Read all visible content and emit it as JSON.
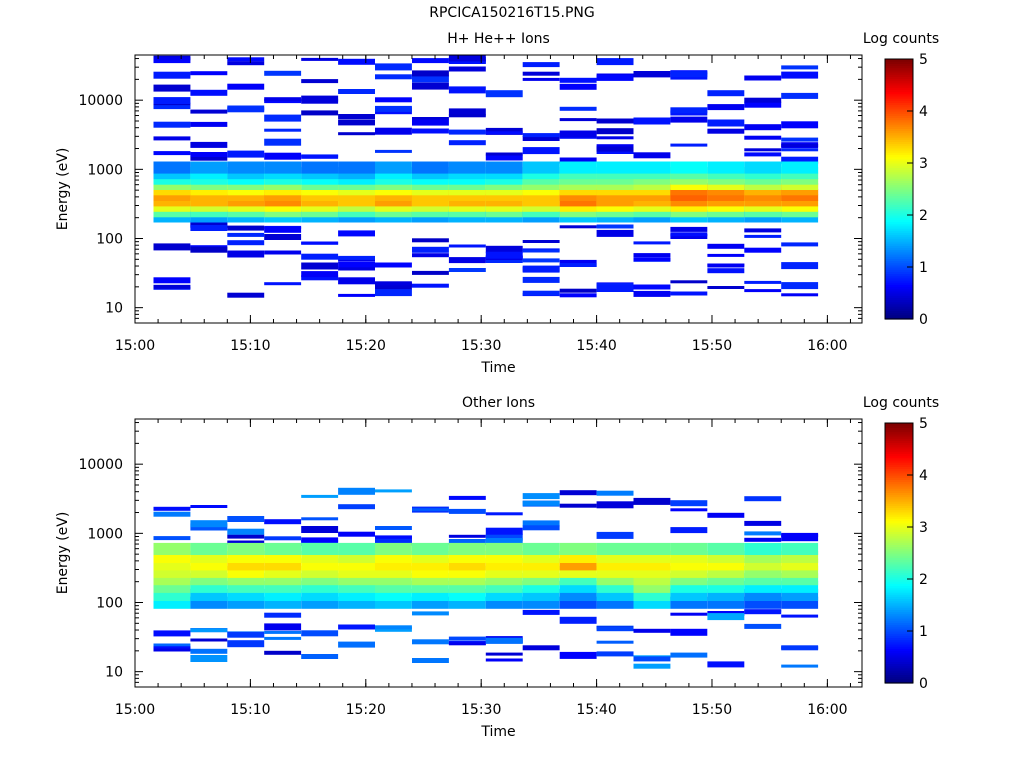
{
  "figure_title": "RPCICA150216T15.PNG",
  "chart_data": [
    {
      "type": "heatmap",
      "title": "H+ He++ Ions",
      "xlabel": "Time",
      "ylabel": "Energy (eV)",
      "colorbar_label": "Log counts",
      "yscale": "log",
      "ylim": [
        6,
        45000
      ],
      "xlim": [
        "15:00",
        "16:03"
      ],
      "xticks": [
        "15:00",
        "15:10",
        "15:20",
        "15:30",
        "15:40",
        "15:50",
        "16:00"
      ],
      "yticks": [
        10,
        100,
        1000,
        10000
      ],
      "ytick_labels": [
        "10",
        "100",
        "1000",
        "10000"
      ],
      "color_range": [
        0,
        5
      ],
      "colorbar_ticks": [
        "0",
        "1",
        "2",
        "3",
        "4",
        "5"
      ],
      "time_columns": [
        "15:03:12",
        "15:06:24",
        "15:09:36",
        "15:12:48",
        "15:16:00",
        "15:19:12",
        "15:22:24",
        "15:25:36",
        "15:28:48",
        "15:32:00",
        "15:35:12",
        "15:38:24",
        "15:41:36",
        "15:44:48",
        "15:48:00",
        "15:51:12",
        "15:54:24",
        "15:57:36"
      ],
      "energy_bins_eV": [
        210,
        250,
        300,
        360,
        430,
        520,
        620,
        740,
        890,
        1070
      ],
      "log_counts_core": [
        [
          1.5,
          2.3,
          3.0,
          3.5,
          3.6,
          3.3,
          2.6,
          2.0,
          1.6,
          1.2
        ],
        [
          1.4,
          2.2,
          2.9,
          3.5,
          3.5,
          3.2,
          2.5,
          2.0,
          1.8,
          1.4
        ],
        [
          1.5,
          2.3,
          3.0,
          3.6,
          3.5,
          3.1,
          2.5,
          1.9,
          1.6,
          1.3
        ],
        [
          1.6,
          2.5,
          3.1,
          3.7,
          3.6,
          3.2,
          2.6,
          2.0,
          1.7,
          1.3
        ],
        [
          1.5,
          2.4,
          3.0,
          3.5,
          3.4,
          3.1,
          2.4,
          1.9,
          1.6,
          1.2
        ],
        [
          1.4,
          2.2,
          2.8,
          3.4,
          3.4,
          3.0,
          2.4,
          1.8,
          1.5,
          1.2
        ],
        [
          1.5,
          2.4,
          3.0,
          3.6,
          3.5,
          3.1,
          2.5,
          2.0,
          1.8,
          1.4
        ],
        [
          1.4,
          2.3,
          2.9,
          3.4,
          3.4,
          3.0,
          2.4,
          1.9,
          1.6,
          1.2
        ],
        [
          1.5,
          2.3,
          3.0,
          3.5,
          3.4,
          3.0,
          2.4,
          1.9,
          1.7,
          1.3
        ],
        [
          1.5,
          2.4,
          3.0,
          3.5,
          3.4,
          3.0,
          2.5,
          2.0,
          1.7,
          1.3
        ],
        [
          1.4,
          2.2,
          2.9,
          3.4,
          3.4,
          3.1,
          2.6,
          2.3,
          2.0,
          1.6
        ],
        [
          1.6,
          2.5,
          3.2,
          3.8,
          3.7,
          3.3,
          2.7,
          2.4,
          2.2,
          1.8
        ],
        [
          1.5,
          2.4,
          3.1,
          3.6,
          3.6,
          3.3,
          2.7,
          2.4,
          2.2,
          1.8
        ],
        [
          1.4,
          2.3,
          3.0,
          3.5,
          3.6,
          3.3,
          2.8,
          2.5,
          2.2,
          1.8
        ],
        [
          1.6,
          2.5,
          3.2,
          3.7,
          3.9,
          3.8,
          3.1,
          2.6,
          2.3,
          1.9
        ],
        [
          1.5,
          2.4,
          3.1,
          3.6,
          3.8,
          3.7,
          3.0,
          2.5,
          2.2,
          1.8
        ],
        [
          1.4,
          2.3,
          3.0,
          3.6,
          3.7,
          3.5,
          2.8,
          2.4,
          2.1,
          1.7
        ],
        [
          1.5,
          2.4,
          3.1,
          3.6,
          3.8,
          3.6,
          2.9,
          2.5,
          2.2,
          1.8
        ]
      ]
    },
    {
      "type": "heatmap",
      "title": "Other Ions",
      "xlabel": "Time",
      "ylabel": "Energy (eV)",
      "colorbar_label": "Log counts",
      "yscale": "log",
      "ylim": [
        6,
        45000
      ],
      "xlim": [
        "15:00",
        "16:03"
      ],
      "xticks": [
        "15:00",
        "15:10",
        "15:20",
        "15:30",
        "15:40",
        "15:50",
        "16:00"
      ],
      "yticks": [
        10,
        100,
        1000,
        10000
      ],
      "ytick_labels": [
        "10",
        "100",
        "1000",
        "10000"
      ],
      "color_range": [
        0,
        5
      ],
      "colorbar_ticks": [
        "0",
        "1",
        "2",
        "3",
        "4",
        "5"
      ],
      "time_columns": [
        "15:03:12",
        "15:06:24",
        "15:09:36",
        "15:12:48",
        "15:16:00",
        "15:19:12",
        "15:22:24",
        "15:25:36",
        "15:28:48",
        "15:32:00",
        "15:35:12",
        "15:38:24",
        "15:41:36",
        "15:44:48",
        "15:48:00",
        "15:51:12",
        "15:54:24",
        "15:57:36"
      ],
      "energy_bins_eV": [
        100,
        130,
        170,
        220,
        280,
        360,
        460,
        600
      ],
      "log_counts_core": [
        [
          1.8,
          2.1,
          2.4,
          2.7,
          2.9,
          3.0,
          3.1,
          2.6
        ],
        [
          1.3,
          1.6,
          2.1,
          2.5,
          2.9,
          3.1,
          3.0,
          2.4
        ],
        [
          1.4,
          1.7,
          2.2,
          2.6,
          3.1,
          3.3,
          3.1,
          2.5
        ],
        [
          1.5,
          1.8,
          2.2,
          2.6,
          3.0,
          3.3,
          3.1,
          2.4
        ],
        [
          1.4,
          1.7,
          2.1,
          2.5,
          2.9,
          3.1,
          3.0,
          2.3
        ],
        [
          1.5,
          1.8,
          2.2,
          2.6,
          3.0,
          3.1,
          2.9,
          2.3
        ],
        [
          1.6,
          1.9,
          2.3,
          2.6,
          3.0,
          3.2,
          3.1,
          2.5
        ],
        [
          1.4,
          1.8,
          2.3,
          2.7,
          3.1,
          3.2,
          3.0,
          2.4
        ],
        [
          1.5,
          1.9,
          2.3,
          2.7,
          3.1,
          3.3,
          3.1,
          2.5
        ],
        [
          1.3,
          1.7,
          2.2,
          2.6,
          3.0,
          3.2,
          3.1,
          2.5
        ],
        [
          1.3,
          1.6,
          2.0,
          2.5,
          3.0,
          3.2,
          3.0,
          2.4
        ],
        [
          1.0,
          1.3,
          1.7,
          2.2,
          3.0,
          3.6,
          3.2,
          2.5
        ],
        [
          1.2,
          1.6,
          2.1,
          2.6,
          3.0,
          3.2,
          3.0,
          2.4
        ],
        [
          1.7,
          2.1,
          2.6,
          2.8,
          3.0,
          3.2,
          3.0,
          2.4
        ],
        [
          1.2,
          1.6,
          2.0,
          2.5,
          2.9,
          3.1,
          3.0,
          2.4
        ],
        [
          1.2,
          1.5,
          2.0,
          2.4,
          2.8,
          3.1,
          2.9,
          2.3
        ],
        [
          1.0,
          1.3,
          1.8,
          2.3,
          2.6,
          2.9,
          2.7,
          2.1
        ],
        [
          1.0,
          1.4,
          1.8,
          2.3,
          2.7,
          3.0,
          2.8,
          2.2
        ]
      ]
    }
  ]
}
